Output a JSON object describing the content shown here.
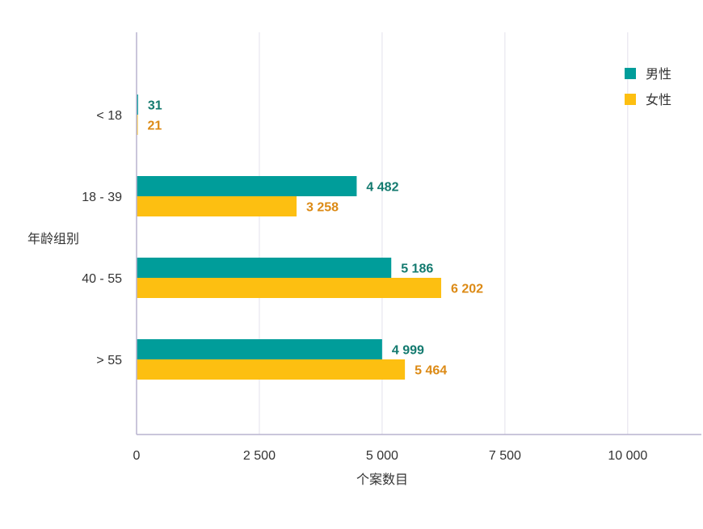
{
  "chart_data": {
    "type": "bar",
    "orientation": "horizontal",
    "categories": [
      "< 18",
      "18 - 39",
      "40 - 55",
      "> 55"
    ],
    "series": [
      {
        "name": "男性",
        "values": [
          31,
          4482,
          5186,
          4999
        ],
        "color": "#009d9a",
        "label_color": "#137a6f"
      },
      {
        "name": "女性",
        "values": [
          21,
          3258,
          6202,
          5464
        ],
        "color": "#fdbf11",
        "label_color": "#dc8a15"
      }
    ],
    "data_labels": [
      [
        "31",
        "4 482",
        "5 186",
        "4 999"
      ],
      [
        "21",
        "3 258",
        "6 202",
        "5 464"
      ]
    ],
    "xlabel": "个案数目",
    "ylabel": "年龄组别",
    "xlim": [
      0,
      11500
    ],
    "xticks": [
      0,
      2500,
      5000,
      7500,
      10000
    ],
    "xtick_labels": [
      "0",
      "2 500",
      "5 000",
      "7 500",
      "10 000"
    ],
    "grid": true,
    "legend_position": "top-right",
    "colors": {
      "axis": "#b9b3cf",
      "grid": "#e3e1ec",
      "text": "#333333"
    }
  }
}
